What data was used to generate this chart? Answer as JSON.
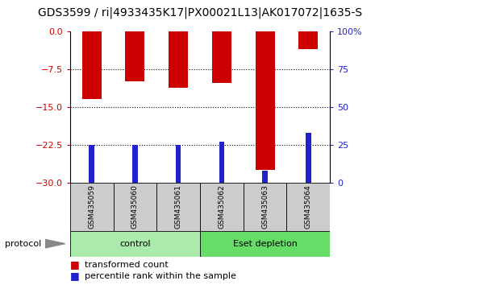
{
  "title": "GDS3599 / ri|4933435K17|PX00021L13|AK017072|1635-S",
  "samples": [
    "GSM435059",
    "GSM435060",
    "GSM435061",
    "GSM435062",
    "GSM435063",
    "GSM435064"
  ],
  "red_values": [
    -13.5,
    -10.0,
    -11.2,
    -10.2,
    -27.5,
    -3.5
  ],
  "blue_values": [
    25.0,
    25.0,
    25.0,
    27.0,
    8.0,
    33.0
  ],
  "ylim_left": [
    -30,
    0
  ],
  "ylim_right": [
    0,
    100
  ],
  "yticks_left": [
    0,
    -7.5,
    -15,
    -22.5,
    -30
  ],
  "yticks_right": [
    0,
    25,
    50,
    75,
    100
  ],
  "red_color": "#cc0000",
  "blue_color": "#2222cc",
  "group_control_color": "#aaeaaa",
  "group_eset_color": "#66dd66",
  "protocol_label": "protocol",
  "legend_red": "transformed count",
  "legend_blue": "percentile rank within the sample"
}
